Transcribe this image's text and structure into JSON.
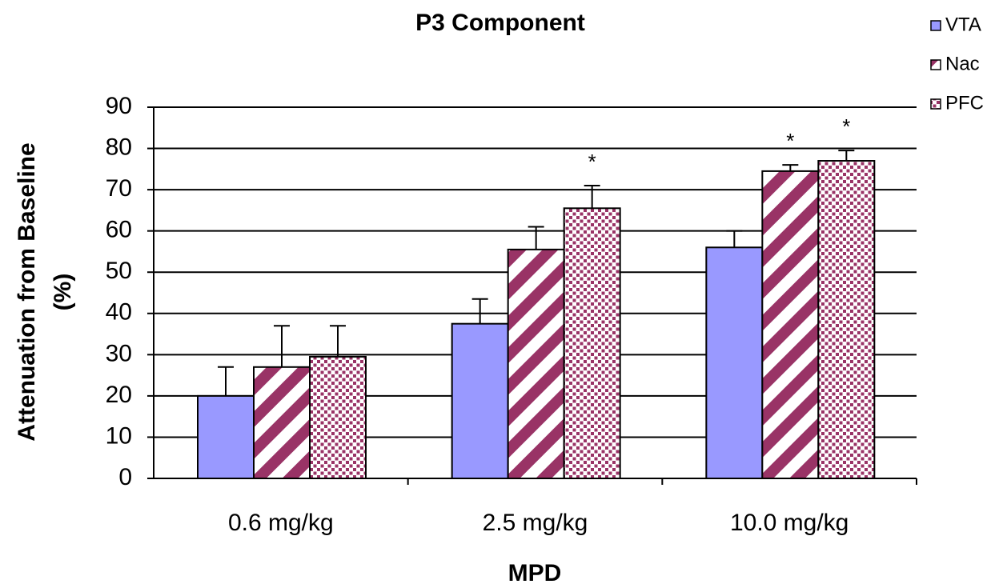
{
  "chart_data": {
    "type": "bar",
    "title": "P3 Component",
    "xlabel": "MPD",
    "ylabel": [
      "Attenuation from Baseline",
      "(%)"
    ],
    "categories": [
      "0.6 mg/kg",
      "2.5 mg/kg",
      "10.0 mg/kg"
    ],
    "series": [
      {
        "name": "VTA",
        "color": "#9999ff",
        "pattern": "solid",
        "values": [
          20,
          37.5,
          56
        ],
        "errors": [
          7,
          6,
          4
        ]
      },
      {
        "name": "Nac",
        "color": "#993366",
        "pattern": "stripes",
        "values": [
          27,
          55.5,
          74.5
        ],
        "errors": [
          10,
          5.5,
          1.5
        ]
      },
      {
        "name": "PFC",
        "color": "#993366",
        "pattern": "dots",
        "values": [
          29.5,
          65.5,
          77
        ],
        "errors": [
          7.5,
          5.5,
          2.5
        ]
      }
    ],
    "annotations": [
      {
        "text": "*",
        "series": 2,
        "category": 1
      },
      {
        "text": "*",
        "series": 1,
        "category": 2
      },
      {
        "text": "*",
        "series": 2,
        "category": 2
      }
    ],
    "ylim": [
      0,
      90
    ],
    "yticks": [
      0,
      10,
      20,
      30,
      40,
      50,
      60,
      70,
      80,
      90
    ],
    "grid": true,
    "legend": "top-right"
  }
}
